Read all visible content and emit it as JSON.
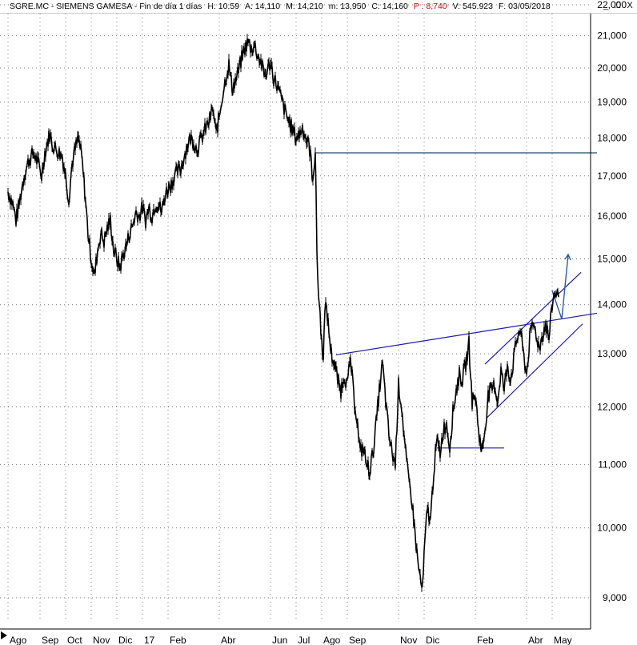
{
  "header": {
    "symbol": "SGRE.MC - SIEMENS GAMESA - Fin de día 1 días",
    "high": "H: 10:59",
    "open": "A: 14,110",
    "max": "M: 14,210",
    "min": "m: 13,950",
    "close": "C: 14,160",
    "p": "P : 8,740",
    "volume": "V: 545.923",
    "date": "F: 03/05/2018"
  },
  "window_controls": {
    "minimize": "_",
    "maximize": "□",
    "close": "X"
  },
  "colors": {
    "price": "#000000",
    "trendline": "#1a1ab4",
    "support": "#1e4a6a",
    "arrow": "#2a5aa0",
    "negative": "#e00000"
  },
  "chart_data": {
    "type": "line",
    "y_scale": "log",
    "ylim": [
      8700,
      22300
    ],
    "y_ticks": [
      "9,000",
      "10,000",
      "11,000",
      "12,000",
      "13,000",
      "14,000",
      "15,000",
      "16,000",
      "17,000",
      "18,000",
      "19,000",
      "20,000",
      "21,000",
      "22,000"
    ],
    "y_tick_values": [
      9000,
      10000,
      11000,
      12000,
      13000,
      14000,
      15000,
      16000,
      17000,
      18000,
      19000,
      20000,
      21000,
      22000
    ],
    "x_ticks": [
      "Ago",
      "Sep",
      "Oct",
      "Nov",
      "Dic",
      "17",
      "Feb",
      "Abr",
      "Jun",
      "Jul",
      "Ago",
      "Sep",
      "Nov",
      "Dic",
      "Feb",
      "Abr",
      "May"
    ],
    "x_tick_index": [
      0,
      40,
      72,
      104,
      136,
      168,
      200,
      264,
      328,
      360,
      392,
      424,
      488,
      520,
      584,
      648,
      680
    ],
    "grid": true,
    "series": [
      {
        "points": [
          [
            0,
            16600
          ],
          [
            6,
            16300
          ],
          [
            10,
            15900
          ],
          [
            14,
            16300
          ],
          [
            20,
            17000
          ],
          [
            26,
            17400
          ],
          [
            32,
            17600
          ],
          [
            38,
            17300
          ],
          [
            42,
            17000
          ],
          [
            46,
            17600
          ],
          [
            52,
            18100
          ],
          [
            56,
            17800
          ],
          [
            60,
            17700
          ],
          [
            64,
            17600
          ],
          [
            68,
            17500
          ],
          [
            72,
            17000
          ],
          [
            76,
            16400
          ],
          [
            80,
            17300
          ],
          [
            84,
            17700
          ],
          [
            88,
            18000
          ],
          [
            92,
            17500
          ],
          [
            96,
            16600
          ],
          [
            100,
            15600
          ],
          [
            104,
            15000
          ],
          [
            108,
            14600
          ],
          [
            112,
            15200
          ],
          [
            116,
            15600
          ],
          [
            120,
            15400
          ],
          [
            124,
            15700
          ],
          [
            128,
            15900
          ],
          [
            132,
            15200
          ],
          [
            136,
            15000
          ],
          [
            140,
            14800
          ],
          [
            144,
            15100
          ],
          [
            148,
            15300
          ],
          [
            152,
            15600
          ],
          [
            156,
            15800
          ],
          [
            160,
            16100
          ],
          [
            164,
            16000
          ],
          [
            168,
            16200
          ],
          [
            172,
            15900
          ],
          [
            176,
            16200
          ],
          [
            180,
            16000
          ],
          [
            184,
            16300
          ],
          [
            188,
            16300
          ],
          [
            192,
            16100
          ],
          [
            196,
            16500
          ],
          [
            200,
            16700
          ],
          [
            204,
            16800
          ],
          [
            208,
            17000
          ],
          [
            212,
            17100
          ],
          [
            216,
            17200
          ],
          [
            220,
            17500
          ],
          [
            224,
            17800
          ],
          [
            228,
            18000
          ],
          [
            232,
            17900
          ],
          [
            236,
            17700
          ],
          [
            240,
            17900
          ],
          [
            244,
            18100
          ],
          [
            248,
            18300
          ],
          [
            252,
            18500
          ],
          [
            256,
            18800
          ],
          [
            260,
            18100
          ],
          [
            264,
            18600
          ],
          [
            268,
            19200
          ],
          [
            272,
            19700
          ],
          [
            276,
            20100
          ],
          [
            280,
            19400
          ],
          [
            284,
            19600
          ],
          [
            288,
            19900
          ],
          [
            292,
            20300
          ],
          [
            296,
            20600
          ],
          [
            300,
            20800
          ],
          [
            304,
            20600
          ],
          [
            308,
            20700
          ],
          [
            312,
            20400
          ],
          [
            316,
            20200
          ],
          [
            320,
            19800
          ],
          [
            324,
            19900
          ],
          [
            328,
            20200
          ],
          [
            332,
            19700
          ],
          [
            336,
            19500
          ],
          [
            340,
            19200
          ],
          [
            344,
            18900
          ],
          [
            348,
            18600
          ],
          [
            352,
            18400
          ],
          [
            356,
            18200
          ],
          [
            360,
            18000
          ],
          [
            364,
            18100
          ],
          [
            368,
            18300
          ],
          [
            372,
            18000
          ],
          [
            376,
            17800
          ],
          [
            378,
            17600
          ],
          [
            380,
            16900
          ],
          [
            382,
            17200
          ],
          [
            384,
            17600
          ],
          [
            386,
            15200
          ],
          [
            388,
            14200
          ],
          [
            390,
            13800
          ],
          [
            392,
            13200
          ],
          [
            394,
            13000
          ],
          [
            396,
            13800
          ],
          [
            398,
            14000
          ],
          [
            400,
            13600
          ],
          [
            404,
            13000
          ],
          [
            408,
            12800
          ],
          [
            412,
            12500
          ],
          [
            416,
            12300
          ],
          [
            420,
            12600
          ],
          [
            424,
            12400
          ],
          [
            428,
            12900
          ],
          [
            432,
            12200
          ],
          [
            436,
            11800
          ],
          [
            440,
            11200
          ],
          [
            444,
            11300
          ],
          [
            448,
            11000
          ],
          [
            452,
            10900
          ],
          [
            456,
            11200
          ],
          [
            460,
            11700
          ],
          [
            464,
            12300
          ],
          [
            468,
            12800
          ],
          [
            472,
            12100
          ],
          [
            476,
            11500
          ],
          [
            480,
            11200
          ],
          [
            484,
            11000
          ],
          [
            488,
            12400
          ],
          [
            492,
            12000
          ],
          [
            496,
            11300
          ],
          [
            500,
            10800
          ],
          [
            504,
            10500
          ],
          [
            508,
            10000
          ],
          [
            512,
            9500
          ],
          [
            516,
            9200
          ],
          [
            518,
            9100
          ],
          [
            520,
            9600
          ],
          [
            524,
            10300
          ],
          [
            528,
            10100
          ],
          [
            532,
            10900
          ],
          [
            536,
            11400
          ],
          [
            540,
            11200
          ],
          [
            544,
            11600
          ],
          [
            548,
            11700
          ],
          [
            552,
            11300
          ],
          [
            556,
            11900
          ],
          [
            560,
            12300
          ],
          [
            564,
            12600
          ],
          [
            568,
            12500
          ],
          [
            572,
            12800
          ],
          [
            576,
            13200
          ],
          [
            580,
            12100
          ],
          [
            584,
            12200
          ],
          [
            588,
            11600
          ],
          [
            592,
            11200
          ],
          [
            596,
            11600
          ],
          [
            600,
            12200
          ],
          [
            604,
            12300
          ],
          [
            608,
            12400
          ],
          [
            612,
            12100
          ],
          [
            616,
            12700
          ],
          [
            620,
            12300
          ],
          [
            624,
            12800
          ],
          [
            628,
            12500
          ],
          [
            632,
            12900
          ],
          [
            636,
            13300
          ],
          [
            640,
            13500
          ],
          [
            644,
            13000
          ],
          [
            648,
            12600
          ],
          [
            652,
            13300
          ],
          [
            656,
            13600
          ],
          [
            660,
            13400
          ],
          [
            664,
            13100
          ],
          [
            668,
            13400
          ],
          [
            672,
            13600
          ],
          [
            676,
            13300
          ],
          [
            680,
            14000
          ],
          [
            684,
            14300
          ],
          [
            688,
            14160
          ]
        ]
      }
    ],
    "annotations": {
      "support_line": {
        "from": [
          384,
          17600
        ],
        "to": [
          736,
          17600
        ]
      },
      "base_line": {
        "from": [
          536,
          11280
        ],
        "to": [
          620,
          11280
        ]
      },
      "neckline": {
        "from": [
          410,
          12980
        ],
        "to": [
          736,
          13820
        ]
      },
      "channel_upper": {
        "from": [
          596,
          12800
        ],
        "to": [
          716,
          14700
        ]
      },
      "channel_lower": {
        "from": [
          598,
          11800
        ],
        "to": [
          718,
          13600
        ]
      },
      "arrow": {
        "points": [
          [
            680,
            14300
          ],
          [
            692,
            13700
          ],
          [
            700,
            15100
          ]
        ]
      }
    }
  }
}
